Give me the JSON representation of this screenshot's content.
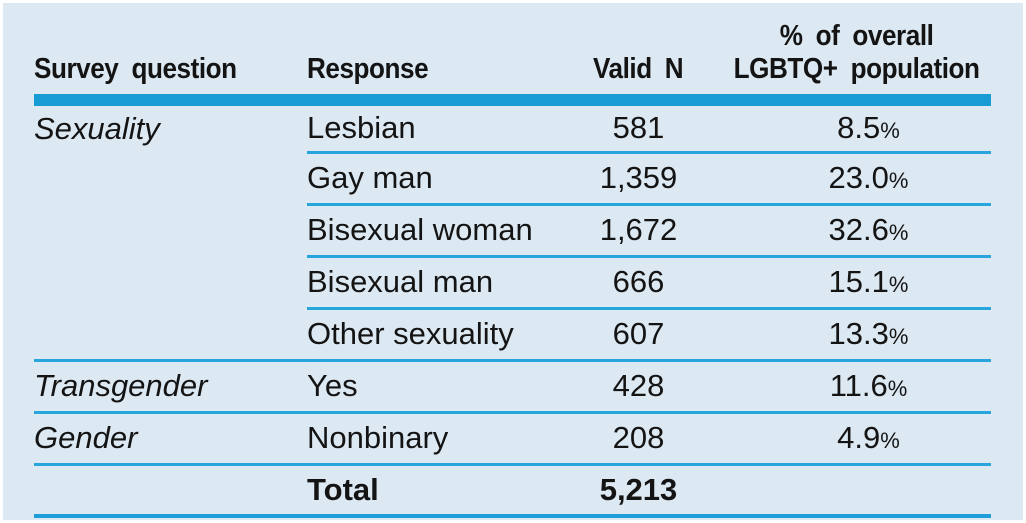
{
  "chart_data": {
    "type": "table",
    "columns": {
      "question": "Survey question",
      "response": "Response",
      "valid_n": "Valid N",
      "pct_line1": "% of overall",
      "pct_line2": "LGBTQ+ population"
    },
    "rows": [
      {
        "question": "Sexuality",
        "response": "Lesbian",
        "valid_n": "581",
        "pct": "8.5"
      },
      {
        "question": "",
        "response": "Gay man",
        "valid_n": "1,359",
        "pct": "23.0"
      },
      {
        "question": "",
        "response": "Bisexual woman",
        "valid_n": "1,672",
        "pct": "32.6"
      },
      {
        "question": "",
        "response": "Bisexual man",
        "valid_n": "666",
        "pct": "15.1"
      },
      {
        "question": "",
        "response": "Other sexuality",
        "valid_n": "607",
        "pct": "13.3"
      },
      {
        "question": "Transgender",
        "response": "Yes",
        "valid_n": "428",
        "pct": "11.6"
      },
      {
        "question": "Gender",
        "response": "Nonbinary",
        "valid_n": "208",
        "pct": "4.9"
      }
    ],
    "total": {
      "label": "Total",
      "valid_n": "5,213"
    },
    "percent_sign": "%"
  },
  "colors": {
    "panel_background": "#dce8f2",
    "rule_blue": "#1e9fd9",
    "text": "#141414"
  }
}
